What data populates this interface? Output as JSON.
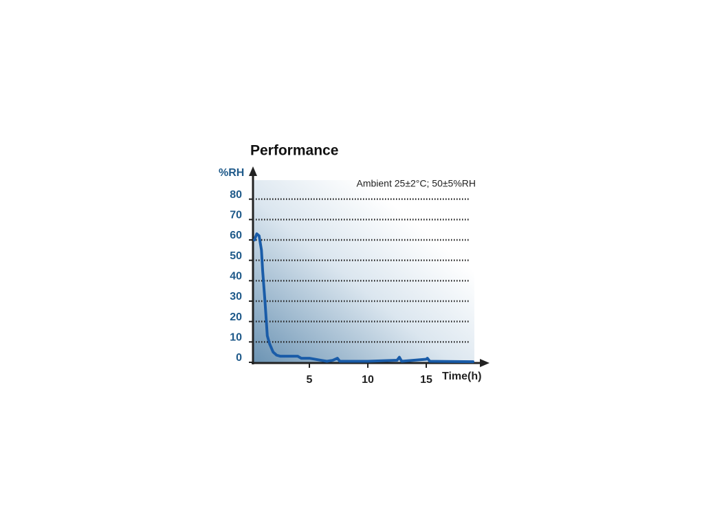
{
  "chart_data": {
    "type": "line",
    "title": "Performance",
    "annotation": "Ambient 25±2°C; 50±5%RH",
    "ylabel": "%RH",
    "xlabel": "Time(h)",
    "xlim": [
      0,
      19
    ],
    "xticks": [
      5,
      10,
      15
    ],
    "ylim": [
      0,
      90
    ],
    "yticks": [
      0,
      10,
      20,
      30,
      40,
      50,
      60,
      70,
      80
    ],
    "grid": true,
    "series": [
      {
        "color": "#1a5ca8",
        "x": [
          0.3,
          0.5,
          0.7,
          0.9,
          1.0,
          1.2,
          1.4,
          1.6,
          1.9,
          2.2,
          2.5,
          4.0,
          4.3,
          5.0,
          6.0,
          6.5,
          7.0,
          7.4,
          7.6,
          8.0,
          10.0,
          12.5,
          12.7,
          12.9,
          15.0,
          15.1,
          15.3,
          19.0
        ],
        "values": [
          60,
          63,
          62,
          55,
          45,
          30,
          13,
          9,
          5,
          3.5,
          3,
          3,
          2,
          2,
          1,
          0.5,
          1,
          2,
          0.5,
          0.5,
          0.5,
          1,
          2.5,
          0.5,
          1.5,
          2,
          0.5,
          0.3
        ]
      }
    ]
  }
}
